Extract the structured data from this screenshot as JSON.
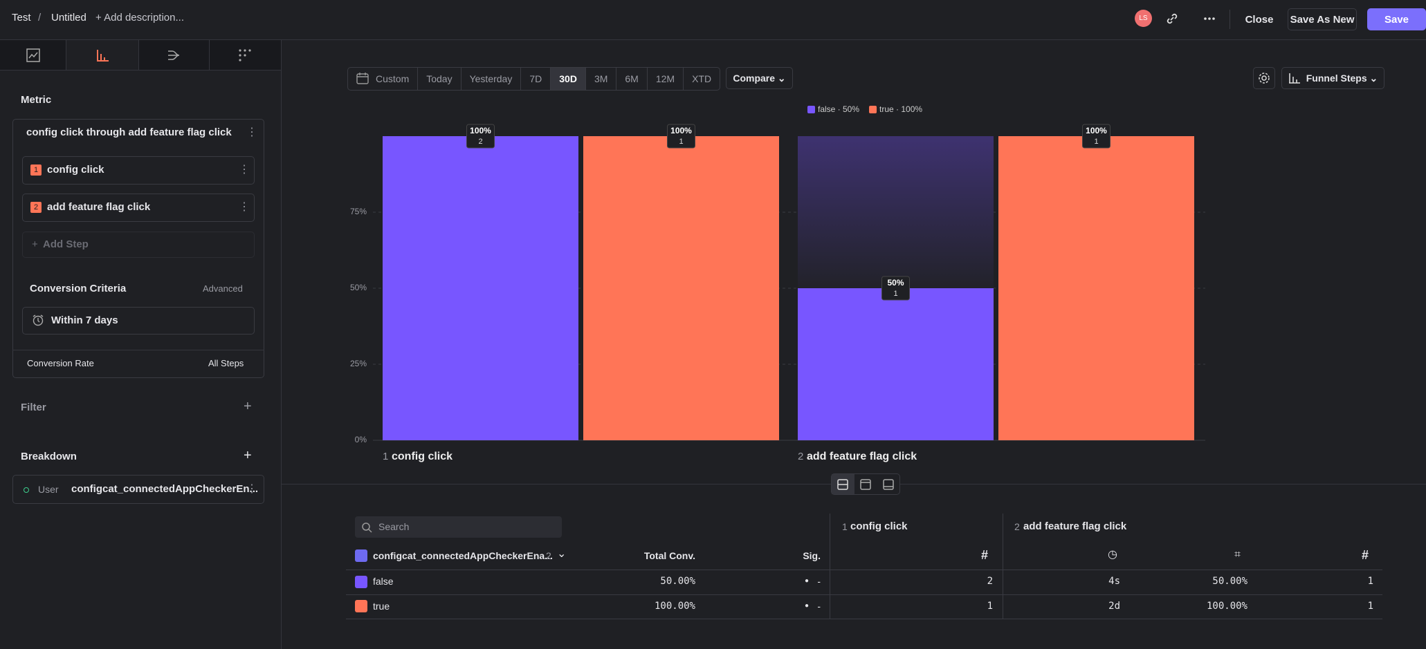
{
  "header": {
    "project": "Test",
    "separator": "/",
    "title": "Untitled",
    "add_description": "+ Add description...",
    "avatar": "LS",
    "close": "Close",
    "save_as_new": "Save As New",
    "save": "Save"
  },
  "sidebar": {
    "metric": "Metric",
    "funnel_name": "config click through add feature flag click",
    "steps": [
      {
        "number": "1",
        "label": "config click"
      },
      {
        "number": "2",
        "label": "add feature flag click"
      }
    ],
    "add_step": "Add Step",
    "conversion_criteria": "Conversion Criteria",
    "advanced": "Advanced",
    "window": "Within 7 days",
    "conversion_rate": "Conversion Rate",
    "all_steps": "All Steps",
    "filter": "Filter",
    "breakdown": "Breakdown",
    "breakdown_item": {
      "scope": "User",
      "property": "configcat_connectedAppCheckerEn..."
    }
  },
  "toolbar": {
    "ranges": [
      "Custom",
      "Today",
      "Yesterday",
      "7D",
      "30D",
      "3M",
      "6M",
      "12M",
      "XTD"
    ],
    "compare": "Compare",
    "view": "Funnel Steps"
  },
  "chart": {
    "type": "bar",
    "categories": [
      "config click",
      "add feature flag click"
    ],
    "step_numbers": [
      "1",
      "2"
    ],
    "series": [
      {
        "name": "false · 50%",
        "color": "#7856ff",
        "values": [
          100,
          50
        ],
        "value_labels": [
          "100%",
          "50%"
        ],
        "counts": [
          2,
          1
        ]
      },
      {
        "name": "true · 100%",
        "color": "#ff7557",
        "values": [
          100,
          100
        ],
        "value_labels": [
          "100%",
          "100%"
        ],
        "counts": [
          1,
          1
        ]
      }
    ],
    "ylim": [
      0,
      100
    ],
    "yticks": [
      {
        "value": 0,
        "label": "0%"
      },
      {
        "value": 25,
        "label": "25%"
      },
      {
        "value": 50,
        "label": "50%"
      },
      {
        "value": 75,
        "label": "75%"
      }
    ],
    "grid": true
  },
  "table": {
    "search": "Search",
    "breakdown_column": "configcat_connectedAppCheckerEna...",
    "breakdown_count": "2",
    "total_conv": "Total Conv.",
    "sig": "Sig.",
    "step_groups": [
      {
        "number": "1",
        "label": "config click"
      },
      {
        "number": "2",
        "label": "add feature flag click"
      }
    ],
    "rows": [
      {
        "name": "false",
        "total": "50.00%",
        "sig": "-",
        "step1_count": "2",
        "time": "4s",
        "rate": "50.00%",
        "step2_count": "1"
      },
      {
        "name": "true",
        "total": "100.00%",
        "sig": "-",
        "step1_count": "1",
        "time": "2d",
        "rate": "100.00%",
        "step2_count": "1"
      }
    ]
  }
}
